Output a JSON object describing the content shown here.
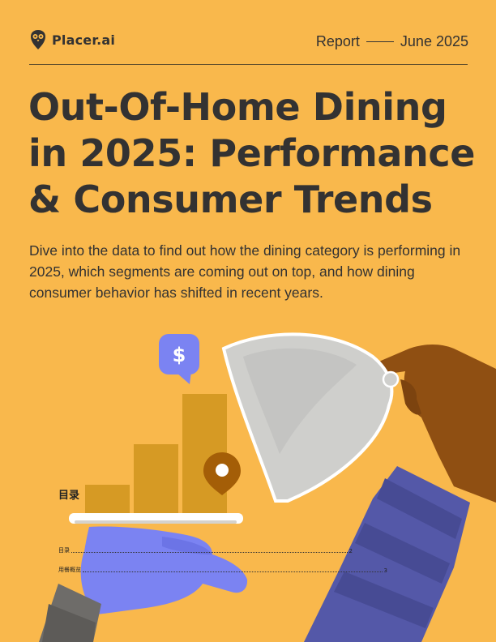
{
  "header": {
    "brand": "Placer.ai",
    "report_label": "Report",
    "date": "June 2025"
  },
  "title_lines": [
    "Out-Of-Home Dining",
    "in 2025: Performance",
    "& Consumer Trends"
  ],
  "subtitle": "Dive into the data to find out how the dining category is performing in 2025, which segments are coming out on top, and how dining consumer behavior has shifted in recent years.",
  "toc": {
    "heading": "目录",
    "entries": [
      {
        "label": "目录",
        "page": "2"
      },
      {
        "label": "用餐概览",
        "page": "3"
      }
    ]
  },
  "illustration": {
    "badge_symbol": "$",
    "colors": {
      "background": "#f9b84c",
      "bars": "#d69a24",
      "badge": "#7b83f2",
      "cloche": "#c9c9c6",
      "skin_dark": "#8f4f12",
      "sleeve": "#5458a8",
      "pin": "#a45e07"
    }
  }
}
